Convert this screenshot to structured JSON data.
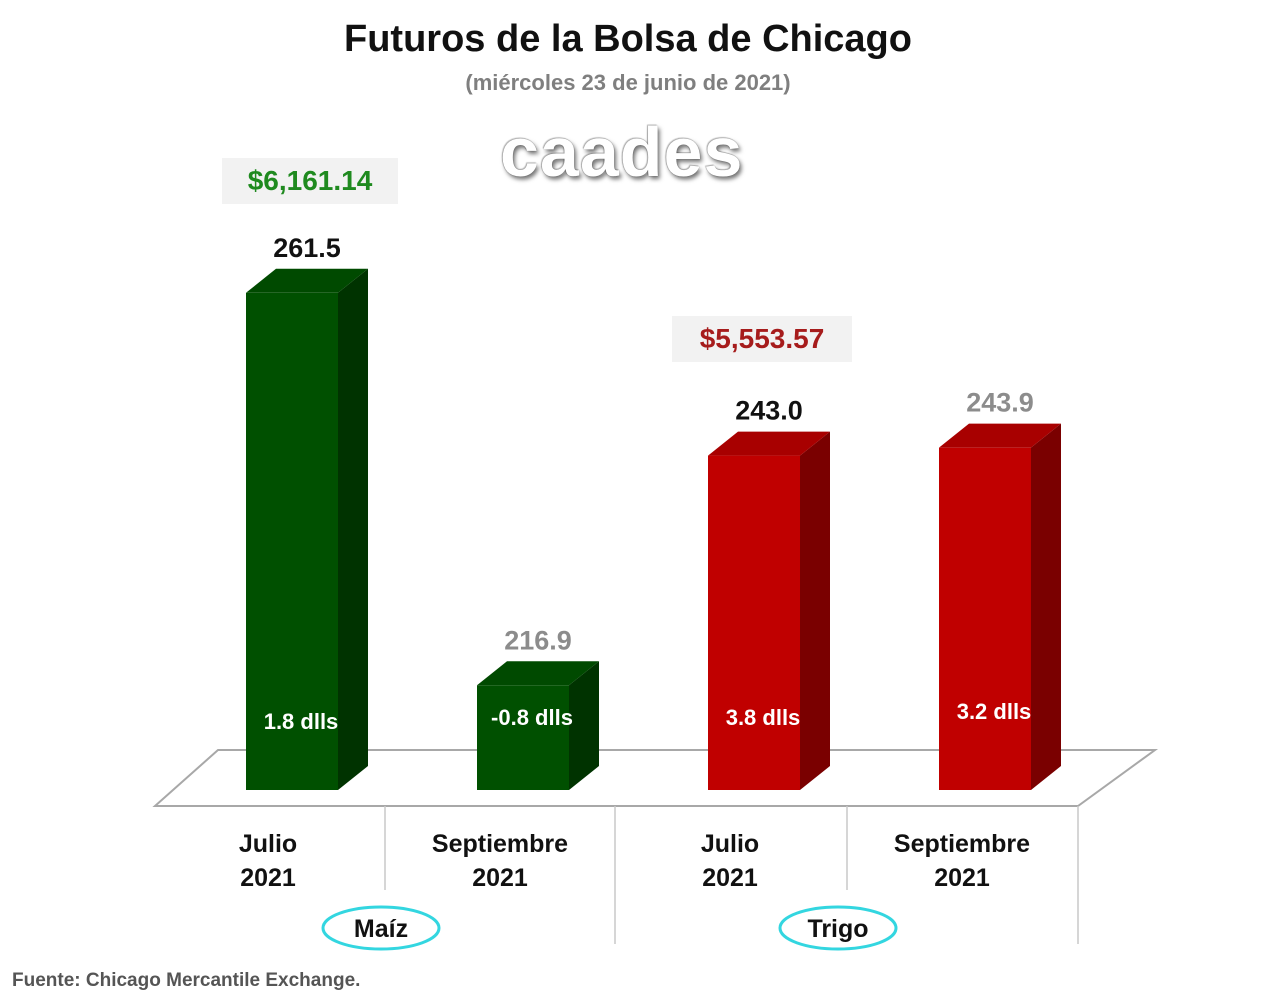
{
  "header": {
    "title": "Futuros de la Bolsa de Chicago",
    "subtitle": "(miércoles 23 de junio de 2021)",
    "logo_text": "caades"
  },
  "price_boxes": [
    {
      "value": "$6,161.14",
      "color": "#1f8a1f"
    },
    {
      "value": "$5,553.57",
      "color": "#a61c1c"
    }
  ],
  "chart_data": {
    "type": "bar",
    "title": "Futuros de la Bolsa de Chicago",
    "subtitle": "(miércoles 23 de junio de 2021)",
    "groups": [
      {
        "name": "Maíz",
        "categories": [
          "Julio\n2021",
          "Septiembre\n2021"
        ]
      },
      {
        "name": "Trigo",
        "categories": [
          "Julio\n2021",
          "Septiembre\n2021"
        ]
      }
    ],
    "bars": [
      {
        "group": "Maíz",
        "category": "Julio 2021",
        "line1": "Julio",
        "line2": "2021",
        "value": 261.5,
        "label": "261.5",
        "change": "1.8 dlls",
        "label_color": "#111111",
        "face": "#005000",
        "side": "#003300",
        "top": "#004a00"
      },
      {
        "group": "Maíz",
        "category": "Septiembre 2021",
        "line1": "Septiembre",
        "line2": "2021",
        "value": 216.9,
        "label": "216.9",
        "change": "-0.8 dlls",
        "label_color": "#8c8c8c",
        "face": "#005000",
        "side": "#003300",
        "top": "#004a00"
      },
      {
        "group": "Trigo",
        "category": "Julio 2021",
        "line1": "Julio",
        "line2": "2021",
        "value": 243.0,
        "label": "243.0",
        "change": "3.8 dlls",
        "label_color": "#111111",
        "face": "#c00000",
        "side": "#7a0000",
        "top": "#a80000"
      },
      {
        "group": "Trigo",
        "category": "Septiembre 2021",
        "line1": "Septiembre",
        "line2": "2021",
        "value": 243.9,
        "label": "243.9",
        "change": "3.2 dlls",
        "label_color": "#8c8c8c",
        "face": "#c00000",
        "side": "#7a0000",
        "top": "#a80000"
      }
    ],
    "ylim": [
      205,
      265
    ],
    "grid": false,
    "legend": "none"
  },
  "source": "Fuente: Chicago Mercantile Exchange."
}
